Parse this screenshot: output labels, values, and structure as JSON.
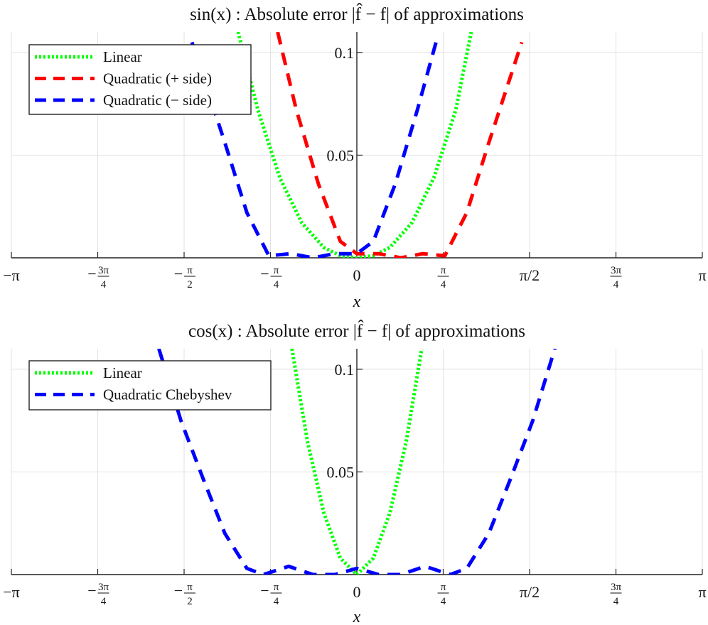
{
  "chart_data": [
    {
      "type": "line",
      "title": "sin(x) : Absolute error |f̂ − f| of approximations",
      "xlabel": "x",
      "ylabel": "",
      "xlim": [
        -3.14159,
        3.14159
      ],
      "ylim": [
        0,
        0.11
      ],
      "grid": true,
      "legend_position": "top-left",
      "x_ticks": [
        "−π",
        "−3π/4",
        "−π/2",
        "−π/4",
        "0",
        "π/4",
        "π/2",
        "3π/4",
        "π"
      ],
      "y_ticks": [
        "0.05",
        "0.1"
      ],
      "series": [
        {
          "name": "Linear",
          "color": "#00ff00",
          "style": "dotted",
          "x": [
            -1.08,
            -0.9,
            -0.7,
            -0.5,
            -0.3,
            -0.15,
            0,
            0.15,
            0.3,
            0.5,
            0.7,
            0.9,
            1.04
          ],
          "y": [
            0.11,
            0.072,
            0.039,
            0.017,
            0.005,
            0.001,
            0,
            0.001,
            0.005,
            0.017,
            0.039,
            0.072,
            0.11
          ]
        },
        {
          "name": "Quadratic (+ side)",
          "color": "#ff0000",
          "style": "dashed",
          "x": [
            -0.72,
            -0.55,
            -0.35,
            -0.15,
            0,
            0.2,
            0.4,
            0.6,
            0.8,
            1.0,
            1.2,
            1.5
          ],
          "y": [
            0.11,
            0.072,
            0.036,
            0.008,
            0.002,
            0.002,
            0.0,
            0.002,
            0.001,
            0.022,
            0.056,
            0.105
          ]
        },
        {
          "name": "Quadratic (− side)",
          "color": "#0000ff",
          "style": "dashed",
          "x": [
            -1.5,
            -1.2,
            -1.0,
            -0.8,
            -0.6,
            -0.4,
            -0.2,
            0,
            0.15,
            0.35,
            0.55,
            0.72
          ],
          "y": [
            0.105,
            0.056,
            0.022,
            0.001,
            0.002,
            0.0,
            0.002,
            0.002,
            0.008,
            0.036,
            0.072,
            0.105
          ]
        }
      ]
    },
    {
      "type": "line",
      "title": "cos(x) : Absolute error |f̂ − f| of approximations",
      "xlabel": "x",
      "ylabel": "",
      "xlim": [
        -3.14159,
        3.14159
      ],
      "ylim": [
        0,
        0.11
      ],
      "grid": true,
      "legend_position": "top-left",
      "x_ticks": [
        "−π",
        "−3π/4",
        "−π/2",
        "−π/4",
        "0",
        "π/4",
        "π/2",
        "3π/4",
        "π"
      ],
      "y_ticks": [
        "0.05",
        "0.1"
      ],
      "series": [
        {
          "name": "Linear",
          "color": "#00ff00",
          "style": "dotted",
          "x": [
            -0.59,
            -0.45,
            -0.3,
            -0.15,
            0,
            0.15,
            0.3,
            0.45,
            0.59
          ],
          "y": [
            0.11,
            0.065,
            0.03,
            0.008,
            0,
            0.008,
            0.03,
            0.065,
            0.11
          ]
        },
        {
          "name": "Quadratic Chebyshev",
          "color": "#0000ff",
          "style": "dashed",
          "x": [
            -1.8,
            -1.6,
            -1.4,
            -1.2,
            -1.0,
            -0.85,
            -0.62,
            -0.4,
            -0.2,
            0,
            0.2,
            0.4,
            0.62,
            0.85,
            1.0,
            1.2,
            1.4,
            1.6,
            1.8
          ],
          "y": [
            0.11,
            0.075,
            0.047,
            0.02,
            0.003,
            0.0,
            0.004,
            0.0,
            0.0,
            0.003,
            0.0,
            0.0,
            0.004,
            0.0,
            0.003,
            0.02,
            0.047,
            0.075,
            0.11
          ]
        }
      ]
    }
  ]
}
